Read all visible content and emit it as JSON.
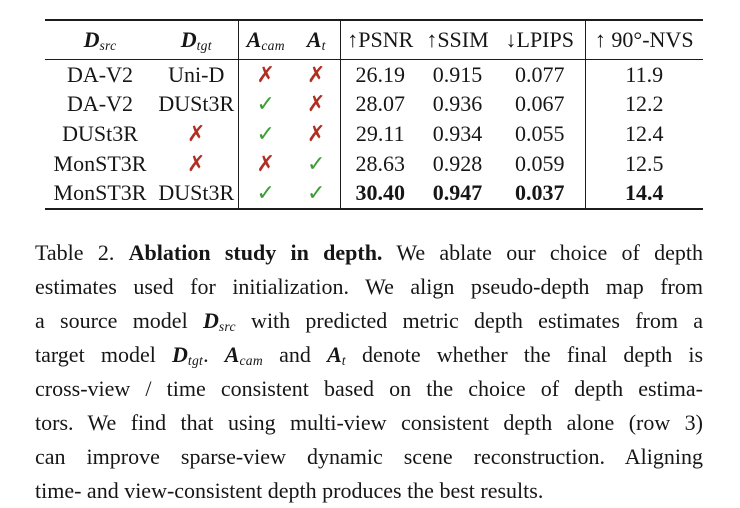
{
  "page": {
    "background": "#ffffff",
    "text_color": "#161616",
    "rule_color": "#1c1c1c"
  },
  "table": {
    "columns": [
      {
        "id": "d_src",
        "math": "D",
        "sub": "src",
        "math_style": "fraktur"
      },
      {
        "id": "d_tgt",
        "math": "D",
        "sub": "tgt",
        "math_style": "fraktur"
      },
      {
        "id": "a_cam",
        "math": "A",
        "sub": "cam",
        "math_style": "fraktur"
      },
      {
        "id": "a_t",
        "math": "A",
        "sub": "t",
        "math_style": "fraktur"
      },
      {
        "id": "psnr",
        "label": "↑PSNR"
      },
      {
        "id": "ssim",
        "label": "↑SSIM"
      },
      {
        "id": "lpips",
        "label": "↓LPIPS"
      },
      {
        "id": "nvs",
        "label": "↑ 90°-NVS"
      }
    ],
    "group_dividers_after": [
      "d_tgt",
      "a_t",
      "lpips"
    ],
    "marks": {
      "check": "✓",
      "cross": "✗"
    },
    "colors": {
      "check": "#3a9e35",
      "cross": "#b02f23"
    },
    "rows": [
      [
        {
          "text": "DA-V2"
        },
        {
          "text": "Uni-D"
        },
        {
          "mark": "cross"
        },
        {
          "mark": "cross"
        },
        {
          "text": "26.19"
        },
        {
          "text": "0.915"
        },
        {
          "text": "0.077"
        },
        {
          "text": "11.9"
        }
      ],
      [
        {
          "text": "DA-V2"
        },
        {
          "text": "DUSt3R"
        },
        {
          "mark": "check"
        },
        {
          "mark": "cross"
        },
        {
          "text": "28.07"
        },
        {
          "text": "0.936"
        },
        {
          "text": "0.067"
        },
        {
          "text": "12.2"
        }
      ],
      [
        {
          "text": "DUSt3R"
        },
        {
          "mark": "cross"
        },
        {
          "mark": "check"
        },
        {
          "mark": "cross"
        },
        {
          "text": "29.11"
        },
        {
          "text": "0.934"
        },
        {
          "text": "0.055"
        },
        {
          "text": "12.4"
        }
      ],
      [
        {
          "text": "MonST3R"
        },
        {
          "mark": "cross"
        },
        {
          "mark": "cross"
        },
        {
          "mark": "check"
        },
        {
          "text": "28.63"
        },
        {
          "text": "0.928"
        },
        {
          "text": "0.059"
        },
        {
          "text": "12.5"
        }
      ],
      [
        {
          "text": "MonST3R"
        },
        {
          "text": "DUSt3R"
        },
        {
          "mark": "check"
        },
        {
          "mark": "check"
        },
        {
          "text": "30.40",
          "bold": true
        },
        {
          "text": "0.947",
          "bold": true
        },
        {
          "text": "0.037",
          "bold": true
        },
        {
          "text": "14.4",
          "bold": true
        }
      ]
    ]
  },
  "caption": {
    "label": "Table 2.",
    "title": "Ablation study in depth.",
    "lines": [
      [
        {
          "t": "Table 2. "
        },
        {
          "t": "Ablation study in depth.",
          "style": "bold"
        },
        {
          "t": " We ablate our choice of depth"
        }
      ],
      [
        {
          "t": "estimates used for initialization. We align pseudo-depth map from"
        }
      ],
      [
        {
          "t": "a source model "
        },
        {
          "t": "D",
          "style": "frak"
        },
        {
          "t": "src",
          "style": "sub"
        },
        {
          "t": " with predicted metric depth estimates from a"
        }
      ],
      [
        {
          "t": "target model "
        },
        {
          "t": "D",
          "style": "frak"
        },
        {
          "t": "tgt",
          "style": "sub"
        },
        {
          "t": ". "
        },
        {
          "t": "A",
          "style": "frak"
        },
        {
          "t": "cam",
          "style": "sub"
        },
        {
          "t": " and "
        },
        {
          "t": "A",
          "style": "frak"
        },
        {
          "t": "t",
          "style": "sub"
        },
        {
          "t": " denote whether the final depth is"
        }
      ],
      [
        {
          "t": "cross-view / time consistent based on the choice of depth estima-"
        }
      ],
      [
        {
          "t": "tors. We find that using multi-view consistent depth alone (row 3)"
        }
      ],
      [
        {
          "t": "can improve sparse-view dynamic scene reconstruction. Aligning"
        }
      ],
      [
        {
          "t": "time- and view-consistent depth produces the best results."
        }
      ]
    ]
  }
}
